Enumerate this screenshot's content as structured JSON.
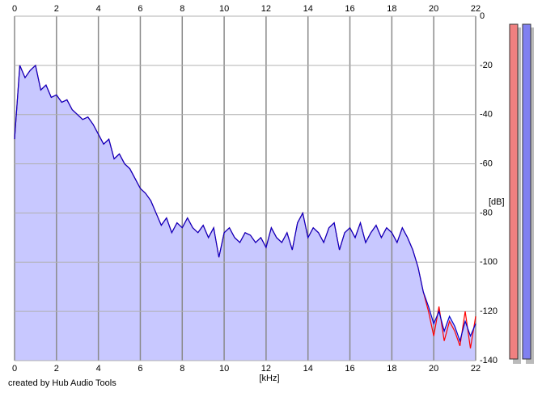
{
  "chart_data": {
    "type": "area",
    "x_label": "[kHz]",
    "y_label": "[dB]",
    "footer": "created by Hub Audio Tools",
    "xlim": [
      0,
      22
    ],
    "xticks": [
      0,
      2,
      4,
      6,
      8,
      10,
      12,
      14,
      16,
      18,
      20,
      22
    ],
    "ylim": [
      -140,
      0
    ],
    "yticks": [
      0,
      -20,
      -40,
      -60,
      -80,
      -100,
      -120,
      -140
    ],
    "grid": true,
    "fill_color": "#c8c8ff",
    "x": [
      0,
      0.25,
      0.5,
      0.75,
      1,
      1.25,
      1.5,
      1.75,
      2,
      2.25,
      2.5,
      2.75,
      3,
      3.25,
      3.5,
      3.75,
      4,
      4.25,
      4.5,
      4.75,
      5,
      5.25,
      5.5,
      5.75,
      6,
      6.25,
      6.5,
      6.75,
      7,
      7.25,
      7.5,
      7.75,
      8,
      8.25,
      8.5,
      8.75,
      9,
      9.25,
      9.5,
      9.75,
      10,
      10.25,
      10.5,
      10.75,
      11,
      11.25,
      11.5,
      11.75,
      12,
      12.25,
      12.5,
      12.75,
      13,
      13.25,
      13.5,
      13.75,
      14,
      14.25,
      14.5,
      14.75,
      15,
      15.25,
      15.5,
      15.75,
      16,
      16.25,
      16.5,
      16.75,
      17,
      17.25,
      17.5,
      17.75,
      18,
      18.25,
      18.5,
      18.75,
      19,
      19.25,
      19.5,
      19.75,
      20,
      20.25,
      20.5,
      20.75,
      21,
      21.25,
      21.5,
      21.75,
      22
    ],
    "series": [
      {
        "color": "#ff0000",
        "values": [
          -50,
          -20,
          -25,
          -22,
          -20,
          -30,
          -28,
          -33,
          -32,
          -35,
          -34,
          -38,
          -40,
          -42,
          -41,
          -44,
          -48,
          -52,
          -50,
          -58,
          -56,
          -60,
          -62,
          -66,
          -70,
          -72,
          -75,
          -80,
          -85,
          -82,
          -88,
          -84,
          -86,
          -82,
          -86,
          -88,
          -85,
          -90,
          -86,
          -98,
          -88,
          -86,
          -90,
          -92,
          -88,
          -89,
          -92,
          -90,
          -94,
          -86,
          -90,
          -92,
          -88,
          -95,
          -84,
          -80,
          -90,
          -86,
          -88,
          -92,
          -86,
          -84,
          -95,
          -88,
          -86,
          -90,
          -84,
          -92,
          -88,
          -85,
          -90,
          -86,
          -88,
          -92,
          -86,
          -90,
          -95,
          -102,
          -112,
          -120,
          -130,
          -118,
          -132,
          -124,
          -128,
          -134,
          -120,
          -135,
          -122
        ]
      },
      {
        "color": "#0000cc",
        "values": [
          -50,
          -20,
          -25,
          -22,
          -20,
          -30,
          -28,
          -33,
          -32,
          -35,
          -34,
          -38,
          -40,
          -42,
          -41,
          -44,
          -48,
          -52,
          -50,
          -58,
          -56,
          -60,
          -62,
          -66,
          -70,
          -72,
          -75,
          -80,
          -85,
          -82,
          -88,
          -84,
          -86,
          -82,
          -86,
          -88,
          -85,
          -90,
          -86,
          -98,
          -88,
          -86,
          -90,
          -92,
          -88,
          -89,
          -92,
          -90,
          -94,
          -86,
          -90,
          -92,
          -88,
          -95,
          -84,
          -80,
          -90,
          -86,
          -88,
          -92,
          -86,
          -84,
          -95,
          -88,
          -86,
          -90,
          -84,
          -92,
          -88,
          -85,
          -90,
          -86,
          -88,
          -92,
          -86,
          -90,
          -95,
          -102,
          -112,
          -118,
          -125,
          -120,
          -128,
          -122,
          -126,
          -132,
          -124,
          -130,
          -125
        ]
      }
    ]
  }
}
